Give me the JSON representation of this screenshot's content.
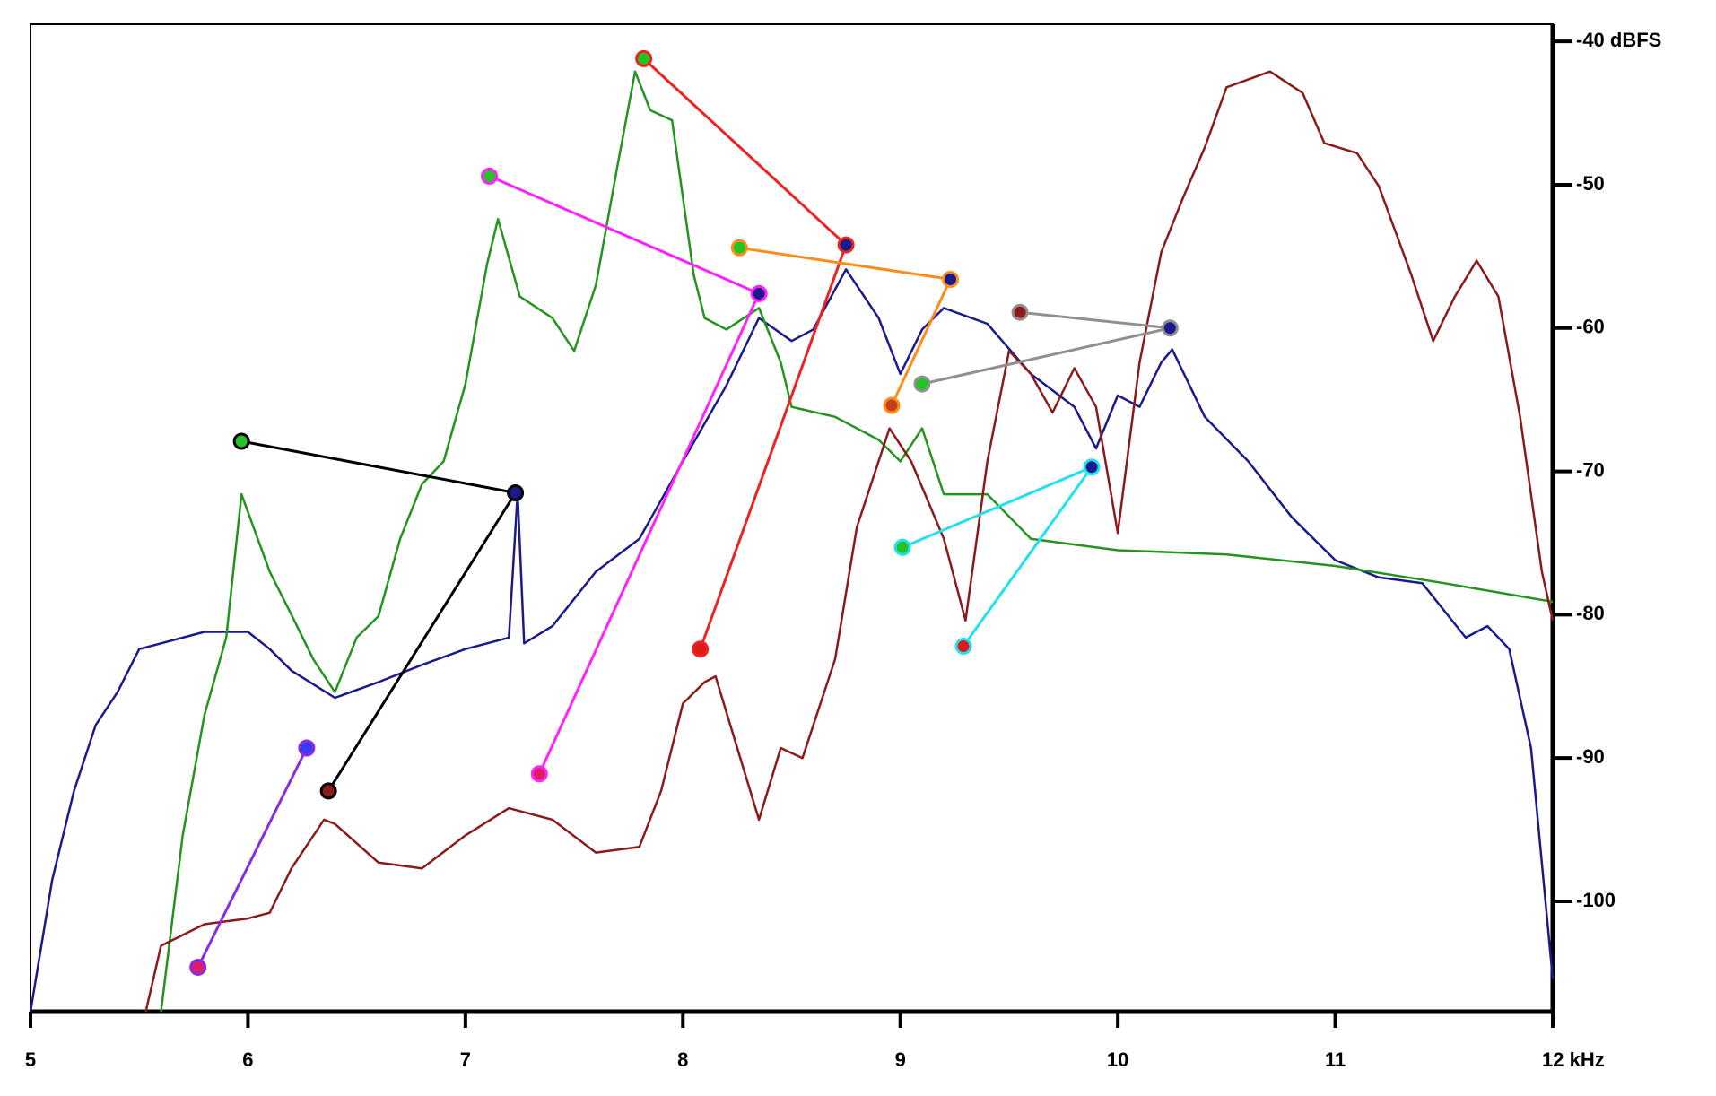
{
  "chart_data": {
    "type": "line",
    "xlim": [
      5,
      12
    ],
    "ylim": [
      -107.7,
      -38.8
    ],
    "xticks": [
      5,
      6,
      7,
      8,
      9,
      10,
      11,
      {
        "value": 12,
        "label": "12 kHz"
      }
    ],
    "yticks": [
      {
        "value": -40,
        "label": "-40 dBFS"
      },
      -50,
      -60,
      -70,
      -80,
      -90,
      -100
    ],
    "series": [
      {
        "color": "#1a1a8c",
        "x": [
          5.0,
          5.1,
          5.2,
          5.3,
          5.4,
          5.5,
          5.6,
          5.8,
          6.0,
          6.1,
          6.2,
          6.4,
          6.6,
          6.8,
          7.0,
          7.2,
          7.24,
          7.27,
          7.4,
          7.6,
          7.8,
          8.0,
          8.2,
          8.35,
          8.5,
          8.6,
          8.75,
          8.9,
          9.0,
          9.1,
          9.2,
          9.4,
          9.6,
          9.8,
          9.9,
          10.0,
          10.1,
          10.2,
          10.25,
          10.4,
          10.6,
          10.8,
          11.0,
          11.2,
          11.4,
          11.5,
          11.6,
          11.7,
          11.8,
          11.9,
          12.0
        ],
        "y": [
          -107.7,
          -98.5,
          -92.3,
          -87.7,
          -85.4,
          -82.4,
          -82,
          -81.2,
          -81.2,
          -82.4,
          -83.9,
          -85.8,
          -84.7,
          -83.5,
          -82.4,
          -81.6,
          -71.5,
          -82,
          -80.8,
          -77,
          -74.7,
          -69.3,
          -64,
          -59.3,
          -60.9,
          -60.1,
          -55.9,
          -59.3,
          -63.2,
          -60.1,
          -58.6,
          -59.7,
          -63.2,
          -65.5,
          -68.4,
          -64.7,
          -65.5,
          -62.4,
          -61.5,
          -66.2,
          -69.3,
          -73.2,
          -76.2,
          -77.4,
          -77.8,
          -79.7,
          -81.6,
          -80.8,
          -82.4,
          -89.3,
          -105.4
        ]
      },
      {
        "color": "#22941f",
        "x": [
          5.6,
          5.7,
          5.8,
          5.9,
          5.97,
          6.1,
          6.2,
          6.3,
          6.4,
          6.5,
          6.6,
          6.7,
          6.8,
          6.9,
          7.0,
          7.1,
          7.15,
          7.25,
          7.4,
          7.5,
          7.6,
          7.7,
          7.78,
          7.85,
          7.95,
          8.05,
          8.1,
          8.2,
          8.35,
          8.45,
          8.5,
          8.7,
          8.9,
          9.0,
          9.1,
          9.2,
          9.4,
          9.6,
          10.0,
          10.5,
          11.0,
          11.5,
          12.0
        ],
        "y": [
          -107.7,
          -95.4,
          -87,
          -81.6,
          -71.6,
          -77,
          -80,
          -83.1,
          -85.4,
          -81.6,
          -80.1,
          -74.7,
          -70.9,
          -69.3,
          -63.9,
          -55.5,
          -52.4,
          -57.8,
          -59.3,
          -61.6,
          -57,
          -48.6,
          -42.1,
          -44.8,
          -45.5,
          -56.3,
          -59.3,
          -60.1,
          -58.6,
          -62.4,
          -65.5,
          -66.2,
          -67.8,
          -69.3,
          -67,
          -71.6,
          -71.6,
          -74.7,
          -75.5,
          -75.8,
          -76.6,
          -77.8,
          -79.1
        ]
      },
      {
        "color": "#8b1a1a",
        "x": [
          5.53,
          5.6,
          5.8,
          6.0,
          6.1,
          6.2,
          6.35,
          6.4,
          6.6,
          6.8,
          7.0,
          7.2,
          7.4,
          7.6,
          7.8,
          7.9,
          8.0,
          8.1,
          8.15,
          8.25,
          8.35,
          8.45,
          8.55,
          8.7,
          8.8,
          8.95,
          9.05,
          9.2,
          9.3,
          9.4,
          9.5,
          9.6,
          9.7,
          9.8,
          9.9,
          10.0,
          10.1,
          10.2,
          10.3,
          10.4,
          10.5,
          10.7,
          10.85,
          10.95,
          11.1,
          11.2,
          11.35,
          11.45,
          11.55,
          11.65,
          11.75,
          11.85,
          11.95,
          12.0
        ],
        "y": [
          -107.7,
          -103.1,
          -101.6,
          -101.2,
          -100.8,
          -97.7,
          -94.3,
          -94.6,
          -97.3,
          -97.7,
          -95.4,
          -93.5,
          -94.3,
          -96.6,
          -96.2,
          -92.3,
          -86.2,
          -84.7,
          -84.3,
          -89.3,
          -94.3,
          -89.3,
          -90,
          -83.1,
          -73.9,
          -67,
          -69.3,
          -74.7,
          -80.4,
          -69.3,
          -61.6,
          -63.2,
          -65.9,
          -62.8,
          -65.5,
          -74.3,
          -62.4,
          -54.7,
          -50.9,
          -47.4,
          -43.2,
          -42.1,
          -43.6,
          -47.1,
          -47.8,
          -50.1,
          -56.3,
          -60.9,
          -57.8,
          -55.3,
          -57.8,
          -66.2,
          -77,
          -80.4
        ]
      }
    ],
    "connectors": [
      {
        "color": "#000000",
        "x": [
          5.97,
          7.23,
          6.37
        ],
        "y": [
          -67.9,
          -71.5,
          -92.3
        ],
        "marker_colors": [
          "#22c322",
          "#1a1a8c",
          "#8b1a1a"
        ]
      },
      {
        "color": "#8a2be2",
        "x": [
          6.27,
          5.77
        ],
        "y": [
          -89.3,
          -104.6
        ],
        "marker_colors": [
          "#3a3af0",
          "#e01a6a"
        ]
      },
      {
        "color": "#ff22ff",
        "x": [
          7.11,
          8.35,
          7.34
        ],
        "y": [
          -49.4,
          -57.6,
          -91.1
        ],
        "marker_colors": [
          "#22c322",
          "#1a1a8c",
          "#e01a6a"
        ]
      },
      {
        "color": "#ee2222",
        "x": [
          7.82,
          8.75,
          8.08
        ],
        "y": [
          -41.2,
          -54.2,
          -82.4
        ],
        "marker_colors": [
          "#22c322",
          "#1a1a8c",
          "#dd1a1a"
        ]
      },
      {
        "color": "#ff8c1a",
        "x": [
          8.26,
          9.23,
          8.96
        ],
        "y": [
          -54.4,
          -56.6,
          -65.4
        ],
        "marker_colors": [
          "#22c322",
          "#1a1a8c",
          "#c0401a"
        ]
      },
      {
        "color": "#909090",
        "x": [
          9.55,
          10.24,
          9.1
        ],
        "y": [
          -58.9,
          -60.0,
          -63.9
        ],
        "marker_colors": [
          "#8b1a1a",
          "#1a1a8c",
          "#22c322"
        ]
      },
      {
        "color": "#22e0f0",
        "x": [
          9.01,
          9.88,
          9.29
        ],
        "y": [
          -75.3,
          -69.7,
          -82.2
        ],
        "marker_colors": [
          "#22c322",
          "#1a1a8c",
          "#dd1a1a"
        ]
      }
    ]
  }
}
